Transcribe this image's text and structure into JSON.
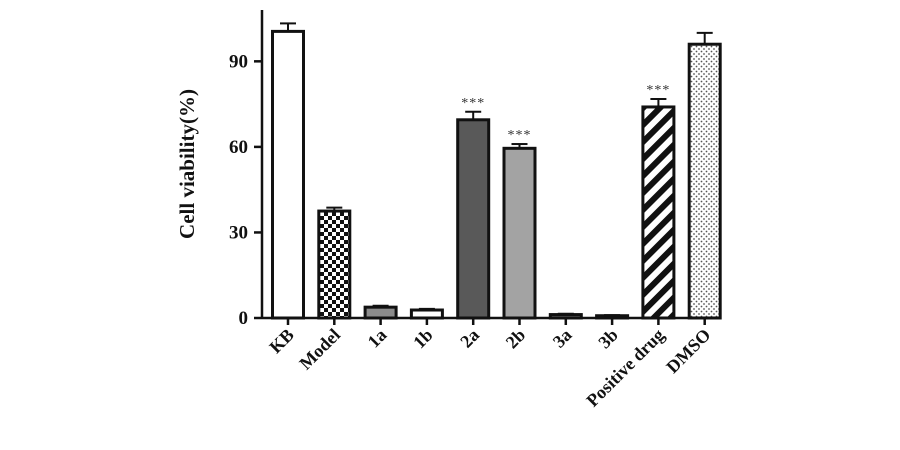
{
  "chart_data": {
    "type": "bar",
    "title": "",
    "xlabel": "",
    "ylabel": "Cell viability(%)",
    "ylim": [
      0,
      108
    ],
    "yticks": [
      0,
      30,
      60,
      90
    ],
    "grid": false,
    "categories": [
      "KB",
      "Model",
      "1a",
      "1b",
      "2a",
      "2b",
      "3a",
      "3b",
      "Positive drug",
      "DMSO"
    ],
    "values": [
      100.5,
      37.5,
      3.8,
      2.8,
      69.5,
      59.5,
      1.2,
      0.8,
      74.0,
      96.0
    ],
    "errors": [
      2.8,
      1.2,
      0.5,
      0.4,
      2.8,
      1.5,
      0.3,
      0.2,
      2.8,
      4.0
    ],
    "significance": [
      "",
      "",
      "",
      "",
      "***",
      "***",
      "",
      "",
      "***",
      ""
    ],
    "fills": [
      "white",
      "checker",
      "#8c8c8c",
      "white",
      "#595959",
      "#a3a3a3",
      "#777777",
      "#777777",
      "diagonal",
      "dots"
    ]
  }
}
